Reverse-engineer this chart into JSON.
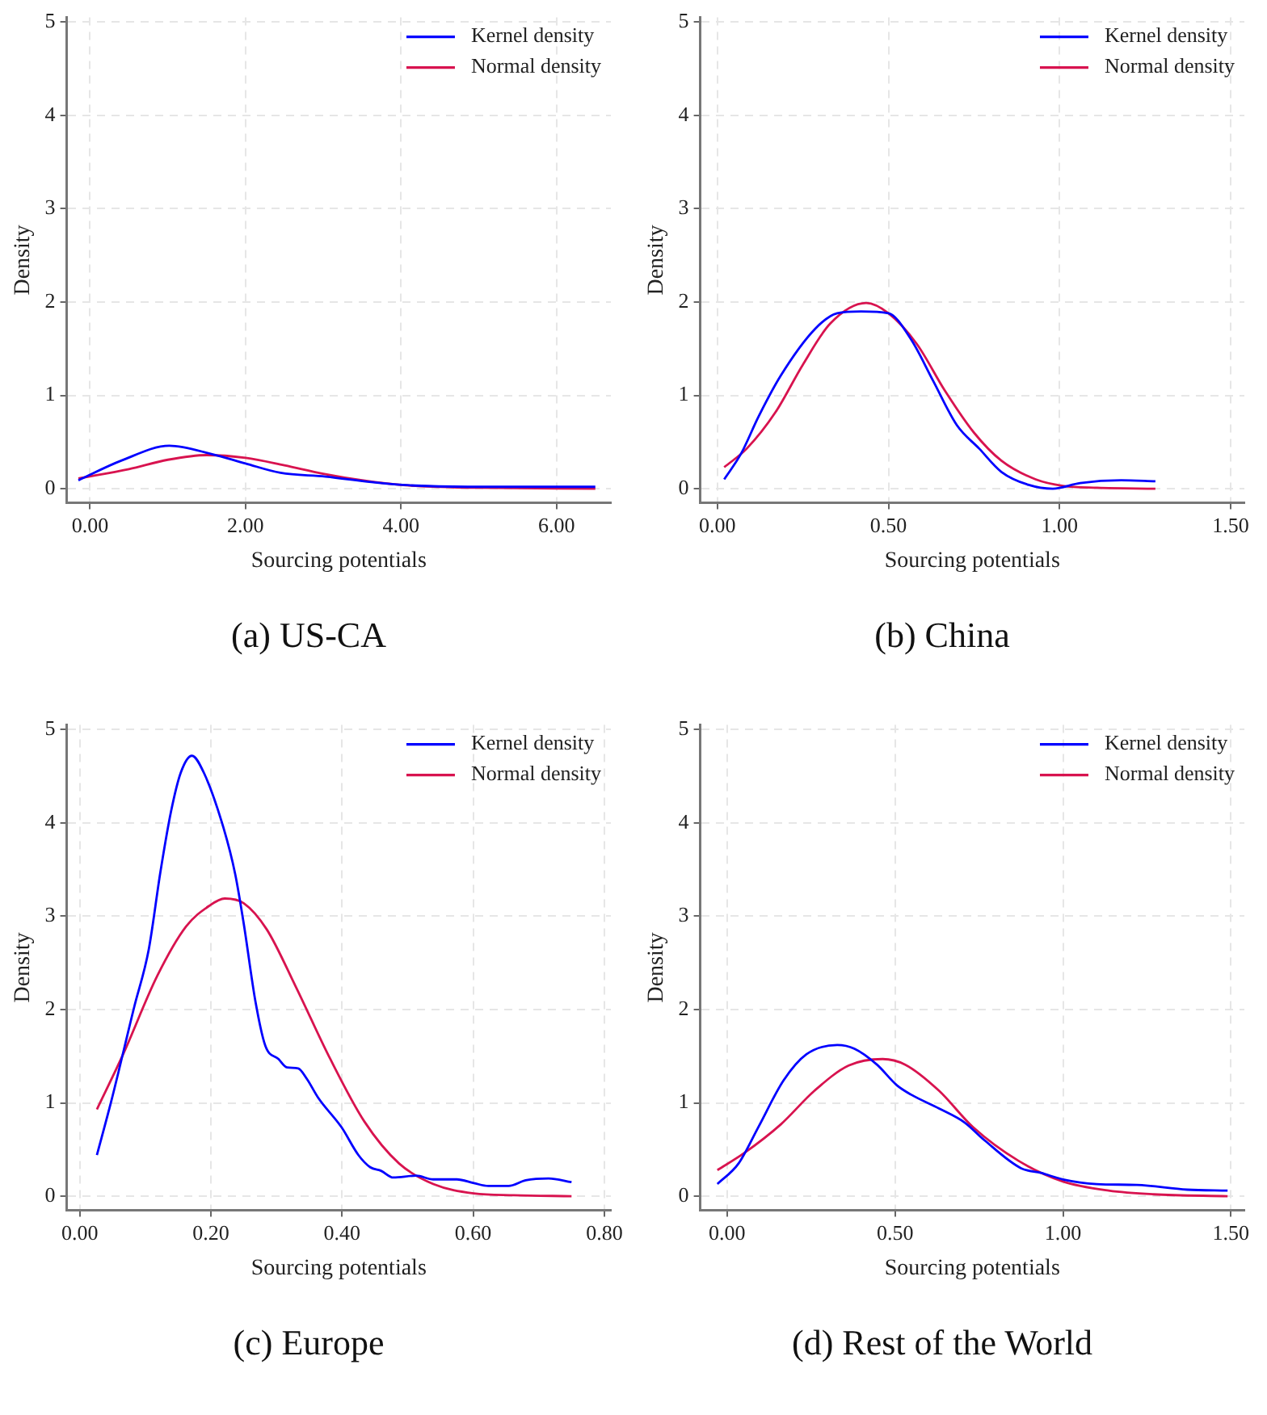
{
  "chart_data": [
    {
      "type": "line",
      "title": "(a) US-CA",
      "xlabel": "Sourcing potentials",
      "ylabel": "Density",
      "xlim": [
        -0.3,
        6.7
      ],
      "ylim": [
        -0.15,
        5.05
      ],
      "xticks": [
        {
          "value": 0,
          "label": "0.00"
        },
        {
          "value": 2,
          "label": "2.00"
        },
        {
          "value": 4,
          "label": "4.00"
        },
        {
          "value": 6,
          "label": "6.00"
        }
      ],
      "yticks": [
        0,
        1,
        2,
        3,
        4,
        5
      ],
      "grid": true,
      "legend": "top right",
      "series": [
        {
          "name": "Kernel density",
          "color": "#0000ff",
          "x": [
            -0.15,
            0.4,
            1.02,
            1.57,
            2.0,
            2.45,
            3.03,
            3.62,
            4.02,
            4.86,
            5.5,
            6.5
          ],
          "values": [
            0.09,
            0.3,
            0.46,
            0.37,
            0.27,
            0.17,
            0.13,
            0.07,
            0.04,
            0.02,
            0.02,
            0.02
          ]
        },
        {
          "name": "Normal density",
          "color": "#d8134f",
          "x": [
            -0.15,
            0.5,
            1.0,
            1.5,
            2.0,
            2.5,
            3.0,
            3.5,
            4.0,
            4.5,
            5.0,
            6.5
          ],
          "values": [
            0.11,
            0.21,
            0.31,
            0.36,
            0.33,
            0.25,
            0.16,
            0.09,
            0.04,
            0.02,
            0.01,
            0
          ]
        }
      ]
    },
    {
      "type": "line",
      "title": "(b) China",
      "xlabel": "Sourcing potentials",
      "ylabel": "Density",
      "xlim": [
        -0.05,
        1.54
      ],
      "ylim": [
        -0.15,
        5.05
      ],
      "xticks": [
        {
          "value": 0,
          "label": "0.00"
        },
        {
          "value": 0.5,
          "label": "0.50"
        },
        {
          "value": 1,
          "label": "1.00"
        },
        {
          "value": 1.5,
          "label": "1.50"
        }
      ],
      "yticks": [
        0,
        1,
        2,
        3,
        4,
        5
      ],
      "grid": true,
      "legend": "top right",
      "series": [
        {
          "name": "Kernel density",
          "color": "#0000ff",
          "x": [
            0.02,
            0.07,
            0.12,
            0.185,
            0.285,
            0.35,
            0.42,
            0.5,
            0.566,
            0.63,
            0.7,
            0.765,
            0.83,
            0.91,
            0.98,
            1.06,
            1.18,
            1.28
          ],
          "values": [
            0.1,
            0.38,
            0.77,
            1.21,
            1.71,
            1.88,
            1.9,
            1.88,
            1.6,
            1.16,
            0.68,
            0.43,
            0.18,
            0.04,
            0,
            0.06,
            0.09,
            0.08
          ]
        },
        {
          "name": "Normal density",
          "color": "#d8134f",
          "x": [
            0.02,
            0.086,
            0.17,
            0.25,
            0.33,
            0.435,
            0.5,
            0.583,
            0.665,
            0.75,
            0.83,
            0.93,
            1.01,
            1.11,
            1.28
          ],
          "values": [
            0.23,
            0.43,
            0.82,
            1.33,
            1.77,
            1.99,
            1.88,
            1.55,
            1.05,
            0.6,
            0.3,
            0.1,
            0.03,
            0.01,
            0
          ]
        }
      ]
    },
    {
      "type": "line",
      "title": "(c) Europe",
      "xlabel": "Sourcing potentials",
      "ylabel": "Density",
      "xlim": [
        -0.02,
        0.81
      ],
      "ylim": [
        -0.15,
        5.05
      ],
      "xticks": [
        {
          "value": 0,
          "label": "0.00"
        },
        {
          "value": 0.2,
          "label": "0.20"
        },
        {
          "value": 0.4,
          "label": "0.40"
        },
        {
          "value": 0.6,
          "label": "0.60"
        },
        {
          "value": 0.8,
          "label": "0.80"
        }
      ],
      "yticks": [
        0,
        1,
        2,
        3,
        4,
        5
      ],
      "grid": true,
      "legend": "top right",
      "series": [
        {
          "name": "Kernel density",
          "color": "#0000ff",
          "x": [
            0.026,
            0.048,
            0.083,
            0.105,
            0.123,
            0.139,
            0.154,
            0.171,
            0.189,
            0.219,
            0.237,
            0.25,
            0.268,
            0.283,
            0.303,
            0.316,
            0.333,
            0.346,
            0.364,
            0.399,
            0.425,
            0.443,
            0.46,
            0.478,
            0.513,
            0.539,
            0.575,
            0.601,
            0.623,
            0.654,
            0.68,
            0.715,
            0.75
          ],
          "values": [
            0.44,
            1.02,
            2.03,
            2.64,
            3.48,
            4.12,
            4.54,
            4.72,
            4.54,
            3.95,
            3.45,
            2.92,
            2.08,
            1.61,
            1.47,
            1.38,
            1.37,
            1.26,
            1.05,
            0.74,
            0.44,
            0.31,
            0.27,
            0.2,
            0.22,
            0.18,
            0.18,
            0.14,
            0.11,
            0.11,
            0.17,
            0.19,
            0.15
          ]
        },
        {
          "name": "Normal density",
          "color": "#d8134f",
          "x": [
            0.026,
            0.066,
            0.118,
            0.162,
            0.197,
            0.221,
            0.25,
            0.285,
            0.329,
            0.382,
            0.434,
            0.487,
            0.539,
            0.601,
            0.662,
            0.75
          ],
          "values": [
            0.93,
            1.52,
            2.36,
            2.89,
            3.11,
            3.19,
            3.14,
            2.86,
            2.25,
            1.47,
            0.8,
            0.35,
            0.13,
            0.03,
            0.01,
            0
          ]
        }
      ]
    },
    {
      "type": "line",
      "title": "(d) Rest of the World",
      "xlabel": "Sourcing potentials",
      "ylabel": "Density",
      "xlim": [
        -0.08,
        1.54
      ],
      "ylim": [
        -0.15,
        5.05
      ],
      "xticks": [
        {
          "value": 0,
          "label": "0.00"
        },
        {
          "value": 0.5,
          "label": "0.50"
        },
        {
          "value": 1,
          "label": "1.00"
        },
        {
          "value": 1.5,
          "label": "1.50"
        }
      ],
      "yticks": [
        0,
        1,
        2,
        3,
        4,
        5
      ],
      "grid": true,
      "legend": "top right",
      "series": [
        {
          "name": "Kernel density",
          "color": "#0000ff",
          "x": [
            -0.029,
            0.034,
            0.093,
            0.168,
            0.236,
            0.328,
            0.379,
            0.446,
            0.505,
            0.547,
            0.631,
            0.707,
            0.766,
            0.875,
            0.934,
            1.0,
            1.1,
            1.22,
            1.37,
            1.49
          ],
          "values": [
            0.13,
            0.35,
            0.74,
            1.24,
            1.52,
            1.62,
            1.58,
            1.41,
            1.19,
            1.09,
            0.94,
            0.79,
            0.6,
            0.3,
            0.25,
            0.18,
            0.13,
            0.12,
            0.07,
            0.06
          ]
        },
        {
          "name": "Normal density",
          "color": "#d8134f",
          "x": [
            -0.029,
            0.05,
            0.16,
            0.26,
            0.362,
            0.463,
            0.53,
            0.631,
            0.732,
            0.867,
            0.998,
            1.136,
            1.27,
            1.49
          ],
          "values": [
            0.28,
            0.46,
            0.77,
            1.13,
            1.4,
            1.47,
            1.41,
            1.13,
            0.74,
            0.38,
            0.16,
            0.06,
            0.02,
            0
          ]
        }
      ]
    }
  ]
}
